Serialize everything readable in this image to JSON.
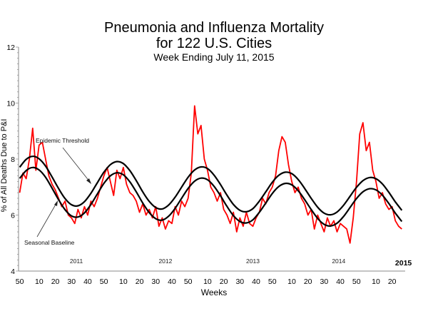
{
  "chart_data": {
    "type": "line",
    "title": "Pneumonia and Influenza Mortality",
    "title_line2": "for 122 U.S. Cities",
    "subtitle": "Week Ending  July 11, 2015",
    "xlabel": "Weeks",
    "ylabel": "% of All Deaths Due to P&I",
    "ylim": [
      4,
      12
    ],
    "y_ticks": [
      "4",
      "6",
      "8",
      "10",
      "12"
    ],
    "x_start": "2010 week 50",
    "x_end": "2015 week 27",
    "x_tick_labels": [
      "50",
      "10",
      "20",
      "30",
      "40",
      "50",
      "10",
      "20",
      "30",
      "40",
      "50",
      "10",
      "20",
      "30",
      "40",
      "50",
      "10",
      "20",
      "30",
      "40",
      "50",
      "10",
      "20"
    ],
    "year_labels": [
      "2011",
      "2012",
      "2013",
      "2014",
      "2015"
    ],
    "grid": false,
    "series": [
      {
        "name": "P&I mortality",
        "color": "#ff0000",
        "step_weeks": 2,
        "values": [
          6.8,
          7.5,
          7.3,
          8.0,
          9.1,
          7.6,
          8.5,
          8.6,
          8.0,
          7.4,
          7.1,
          6.9,
          6.6,
          6.3,
          6.5,
          6.0,
          5.9,
          5.7,
          6.2,
          5.9,
          6.3,
          6.0,
          6.5,
          6.3,
          6.6,
          7.0,
          7.4,
          7.7,
          7.2,
          6.7,
          7.6,
          7.3,
          7.7,
          7.1,
          6.8,
          6.7,
          6.5,
          6.1,
          6.4,
          6.0,
          6.2,
          5.9,
          6.3,
          5.6,
          5.9,
          5.5,
          5.8,
          5.7,
          6.3,
          6.0,
          6.5,
          6.3,
          6.6,
          7.5,
          9.9,
          8.9,
          9.2,
          8.0,
          7.6,
          7.0,
          6.8,
          6.5,
          6.8,
          6.2,
          6.0,
          5.7,
          6.1,
          5.4,
          5.9,
          5.6,
          6.1,
          5.7,
          5.6,
          5.9,
          6.1,
          6.6,
          6.4,
          6.8,
          7.0,
          7.4,
          8.3,
          8.8,
          8.6,
          7.8,
          7.2,
          6.8,
          7.0,
          6.6,
          6.4,
          6.0,
          6.2,
          5.5,
          6.0,
          5.7,
          5.4,
          5.9,
          5.6,
          5.8,
          5.4,
          5.7,
          5.6,
          5.5,
          5.0,
          5.9,
          7.2,
          8.9,
          9.3,
          8.3,
          8.6,
          7.6,
          7.2,
          6.6,
          6.8,
          6.4,
          6.2,
          6.3,
          5.8,
          5.6,
          5.5
        ]
      },
      {
        "name": "Seasonal Baseline",
        "color": "#000000",
        "step_weeks": 4,
        "values": [
          7.31,
          7.59,
          7.7,
          7.61,
          7.35,
          6.96,
          6.55,
          6.19,
          5.97,
          5.93,
          6.08,
          6.38,
          6.76,
          7.13,
          7.4,
          7.51,
          7.44,
          7.19,
          6.83,
          6.43,
          6.09,
          5.87,
          5.82,
          5.96,
          6.24,
          6.6,
          6.95,
          7.21,
          7.32,
          7.26,
          7.03,
          6.69,
          6.31,
          5.98,
          5.77,
          5.72,
          5.83,
          6.1,
          6.43,
          6.77,
          7.02,
          7.13,
          7.08,
          6.87,
          6.55,
          6.2,
          5.88,
          5.67,
          5.61,
          5.71,
          5.95,
          6.27,
          6.59,
          6.83,
          6.94,
          6.9,
          6.71,
          6.41,
          6.07,
          5.77
        ]
      },
      {
        "name": "Epidemic Threshold",
        "color": "#000000",
        "step_weeks": 4,
        "values": [
          7.71,
          7.99,
          8.1,
          8.01,
          7.75,
          7.36,
          6.95,
          6.59,
          6.37,
          6.33,
          6.48,
          6.78,
          7.16,
          7.53,
          7.8,
          7.91,
          7.84,
          7.59,
          7.23,
          6.83,
          6.49,
          6.27,
          6.22,
          6.36,
          6.64,
          7.0,
          7.35,
          7.61,
          7.72,
          7.66,
          7.43,
          7.09,
          6.71,
          6.38,
          6.17,
          6.12,
          6.23,
          6.5,
          6.83,
          7.17,
          7.42,
          7.53,
          7.48,
          7.27,
          6.95,
          6.6,
          6.28,
          6.07,
          6.01,
          6.11,
          6.35,
          6.67,
          6.99,
          7.23,
          7.34,
          7.3,
          7.11,
          6.81,
          6.47,
          6.17
        ]
      }
    ],
    "annotations": {
      "threshold_label": "Epidemic Threshold",
      "baseline_label": "Seasonal Baseline"
    }
  }
}
